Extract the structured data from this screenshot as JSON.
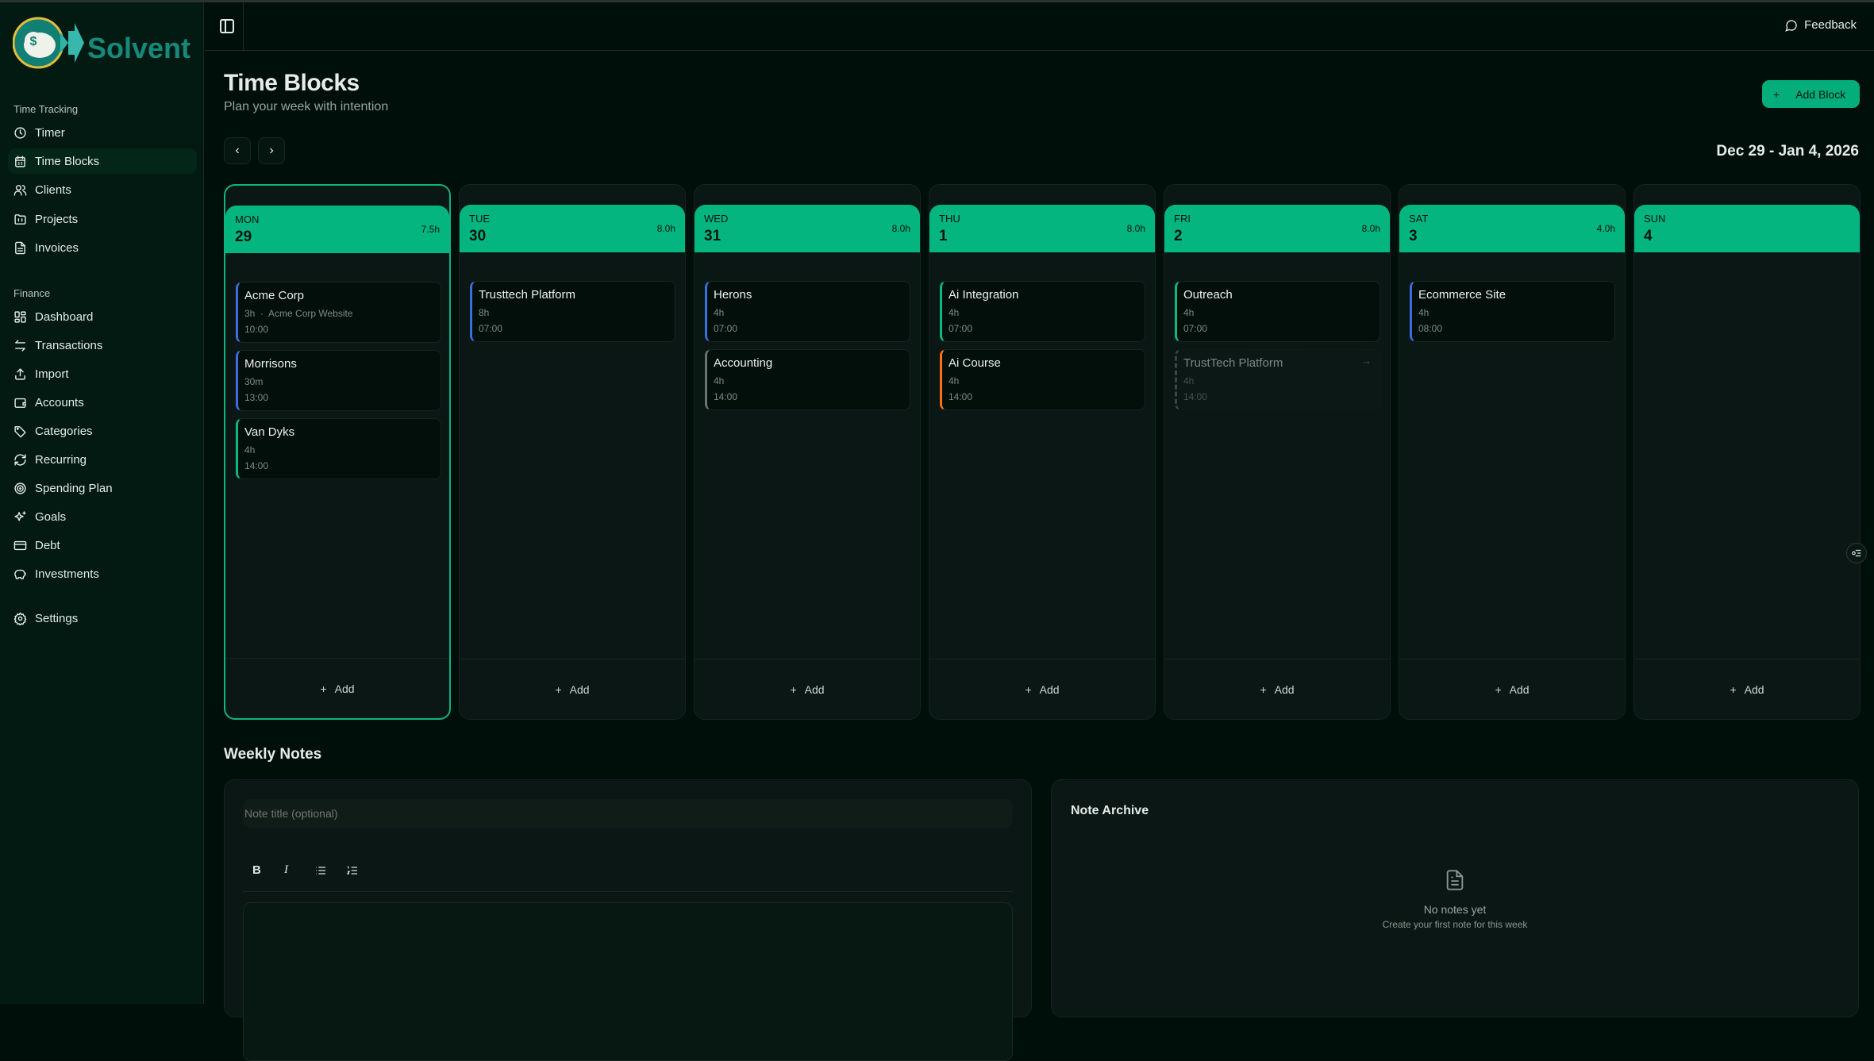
{
  "app": {
    "name": "Solvent"
  },
  "sidebar": {
    "sections": [
      {
        "label": "Time Tracking",
        "items": [
          {
            "label": "Timer",
            "icon": "clock-icon"
          },
          {
            "label": "Time Blocks",
            "icon": "calendar-icon",
            "active": true
          },
          {
            "label": "Clients",
            "icon": "users-icon"
          },
          {
            "label": "Projects",
            "icon": "folder-icon"
          },
          {
            "label": "Invoices",
            "icon": "file-text-icon"
          }
        ]
      },
      {
        "label": "Finance",
        "items": [
          {
            "label": "Dashboard",
            "icon": "dashboard-icon"
          },
          {
            "label": "Transactions",
            "icon": "arrows-icon"
          },
          {
            "label": "Import",
            "icon": "upload-icon"
          },
          {
            "label": "Accounts",
            "icon": "wallet-icon"
          },
          {
            "label": "Categories",
            "icon": "tag-icon"
          },
          {
            "label": "Recurring",
            "icon": "refresh-icon"
          },
          {
            "label": "Spending Plan",
            "icon": "target-icon"
          },
          {
            "label": "Goals",
            "icon": "sparkles-icon"
          },
          {
            "label": "Debt",
            "icon": "credit-card-icon"
          },
          {
            "label": "Investments",
            "icon": "piggy-bank-icon"
          }
        ]
      }
    ],
    "settings": {
      "label": "Settings",
      "icon": "gear-icon"
    }
  },
  "topbar": {
    "feedback_label": "Feedback"
  },
  "page": {
    "title": "Time Blocks",
    "subtitle": "Plan your week with intention",
    "add_block_label": "Add Block",
    "date_range": "Dec 29 - Jan 4, 2026"
  },
  "colors": {
    "accent": "#05b57f",
    "blue": "#3b6fe0",
    "green": "#10b981",
    "orange": "#f97316",
    "gray": "#6b7570"
  },
  "days": [
    {
      "name": "MON",
      "num": "29",
      "hours": "7.5h",
      "today": true,
      "add_label": "Add",
      "blocks": [
        {
          "title": "Acme Corp",
          "duration": "3h",
          "project": "Acme Corp Website",
          "time": "10:00",
          "color": "blue"
        },
        {
          "title": "Morrisons",
          "duration": "30m",
          "time": "13:00",
          "color": "blue"
        },
        {
          "title": "Van Dyks",
          "duration": "4h",
          "time": "14:00",
          "color": "green"
        }
      ]
    },
    {
      "name": "TUE",
      "num": "30",
      "hours": "8.0h",
      "add_label": "Add",
      "blocks": [
        {
          "title": "Trusttech Platform",
          "duration": "8h",
          "time": "07:00",
          "color": "blue"
        }
      ]
    },
    {
      "name": "WED",
      "num": "31",
      "hours": "8.0h",
      "add_label": "Add",
      "blocks": [
        {
          "title": "Herons",
          "duration": "4h",
          "time": "07:00",
          "color": "blue"
        },
        {
          "title": "Accounting",
          "duration": "4h",
          "time": "14:00",
          "color": "gray"
        }
      ]
    },
    {
      "name": "THU",
      "num": "1",
      "hours": "8.0h",
      "add_label": "Add",
      "blocks": [
        {
          "title": "Ai Integration",
          "duration": "4h",
          "time": "07:00",
          "color": "green"
        },
        {
          "title": "Ai Course",
          "duration": "4h",
          "time": "14:00",
          "color": "orange"
        }
      ]
    },
    {
      "name": "FRI",
      "num": "2",
      "hours": "8.0h",
      "add_label": "Add",
      "blocks": [
        {
          "title": "Outreach",
          "duration": "4h",
          "time": "07:00",
          "color": "green"
        },
        {
          "title": "TrustTech Platform",
          "duration": "4h",
          "time": "14:00",
          "color": "gray",
          "ghost": true
        }
      ]
    },
    {
      "name": "SAT",
      "num": "3",
      "hours": "4.0h",
      "add_label": "Add",
      "blocks": [
        {
          "title": "Ecommerce Site",
          "duration": "4h",
          "time": "08:00",
          "color": "blue"
        }
      ]
    },
    {
      "name": "SUN",
      "num": "4",
      "hours": "",
      "add_label": "Add",
      "blocks": []
    }
  ],
  "notes": {
    "heading": "Weekly Notes",
    "title_placeholder": "Note title (optional)",
    "toolbar": [
      "B",
      "I",
      "bullet-list-icon",
      "numbered-list-icon"
    ],
    "archive_title": "Note Archive",
    "empty_title": "No notes yet",
    "empty_subtitle": "Create your first note for this week"
  }
}
